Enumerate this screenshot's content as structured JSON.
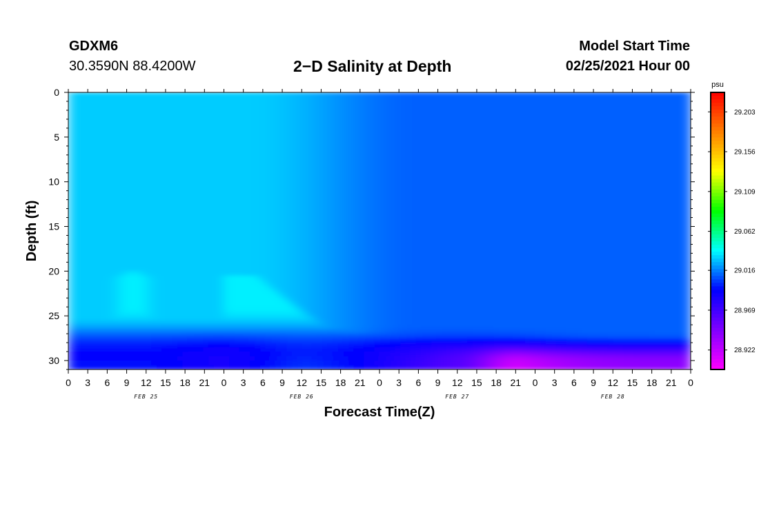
{
  "header": {
    "station_id": "GDXM6",
    "station_coords": "30.3590N 88.4200W",
    "title": "2−D Salinity at Depth",
    "start_label": "Model Start Time",
    "start_value": "02/25/2021 Hour 00"
  },
  "chart_data": {
    "type": "heatmap",
    "title": "2−D Salinity at Depth",
    "xlabel": "Forecast Time(Z)",
    "ylabel": "Depth (ft)",
    "x_tick_labels": [
      "0",
      "3",
      "6",
      "9",
      "12",
      "15",
      "18",
      "21",
      "0",
      "3",
      "6",
      "9",
      "12",
      "15",
      "18",
      "21",
      "0",
      "3",
      "6",
      "9",
      "12",
      "15",
      "18",
      "21",
      "0",
      "3",
      "6",
      "9",
      "12",
      "15",
      "18",
      "21",
      "0"
    ],
    "day_labels": [
      "FEB 25",
      "FEB 26",
      "FEB 27",
      "FEB 28"
    ],
    "xlim_hours": [
      0,
      96
    ],
    "y_ticks": [
      0,
      5,
      10,
      15,
      20,
      25,
      30
    ],
    "ylim": [
      0,
      31
    ],
    "y_inverted": true,
    "colorbar": {
      "unit": "psu",
      "tick_labels": [
        "29.203",
        "29.156",
        "29.109",
        "29.062",
        "29.016",
        "28.969",
        "28.922"
      ],
      "range": [
        28.899,
        29.226
      ],
      "colors": [
        "#ff00ff",
        "#8000ff",
        "#0000ff",
        "#00ffff",
        "#00ff00",
        "#ffff00",
        "#ff8000",
        "#ff0000"
      ]
    },
    "grid": false,
    "legend": "colorbar-right"
  }
}
